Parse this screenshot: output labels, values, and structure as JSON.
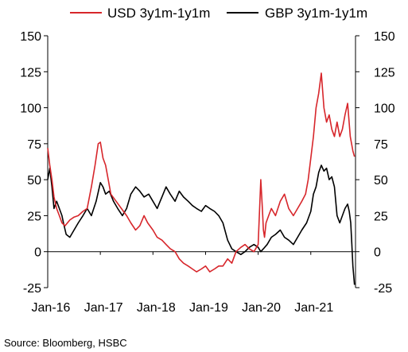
{
  "chart_data": {
    "type": "line",
    "source": "Source: Bloomberg, HSBC",
    "x_tick_labels": [
      "Jan-16",
      "Jan-17",
      "Jan-18",
      "Jan-19",
      "Jan-20",
      "Jan-21"
    ],
    "x_tick_dates": [
      2016.0,
      2017.0,
      2018.0,
      2019.0,
      2020.0,
      2021.0
    ],
    "xlim": [
      2016.0,
      2021.85
    ],
    "ylim": [
      -25,
      150
    ],
    "y_ticks": [
      -25,
      0,
      25,
      50,
      75,
      100,
      125,
      150
    ],
    "y_tick_labels": [
      "-25",
      "0",
      "25",
      "50",
      "75",
      "100",
      "125",
      "150"
    ],
    "grid": false,
    "legend_position": "top",
    "series": [
      {
        "name": "USD 3y1m-1y1m",
        "color": "#d7262b",
        "x": [
          2016.0,
          2016.04,
          2016.08,
          2016.12,
          2016.17,
          2016.22,
          2016.27,
          2016.33,
          2016.42,
          2016.5,
          2016.58,
          2016.67,
          2016.75,
          2016.83,
          2016.9,
          2016.96,
          2017.0,
          2017.05,
          2017.1,
          2017.15,
          2017.2,
          2017.3,
          2017.4,
          2017.5,
          2017.58,
          2017.67,
          2017.75,
          2017.83,
          2017.9,
          2018.0,
          2018.08,
          2018.17,
          2018.25,
          2018.33,
          2018.42,
          2018.5,
          2018.58,
          2018.67,
          2018.75,
          2018.83,
          2018.92,
          2019.0,
          2019.08,
          2019.17,
          2019.25,
          2019.33,
          2019.42,
          2019.5,
          2019.58,
          2019.67,
          2019.75,
          2019.83,
          2019.92,
          2020.0,
          2020.05,
          2020.08,
          2020.1,
          2020.12,
          2020.15,
          2020.2,
          2020.25,
          2020.33,
          2020.42,
          2020.5,
          2020.58,
          2020.67,
          2020.75,
          2020.83,
          2020.9,
          2020.95,
          2021.0,
          2021.05,
          2021.1,
          2021.15,
          2021.2,
          2021.25,
          2021.3,
          2021.35,
          2021.4,
          2021.45,
          2021.5,
          2021.55,
          2021.6,
          2021.65,
          2021.7,
          2021.75,
          2021.8,
          2021.83
        ],
        "y": [
          72,
          60,
          50,
          38,
          30,
          25,
          20,
          18,
          22,
          24,
          25,
          28,
          30,
          45,
          60,
          75,
          76,
          65,
          60,
          50,
          40,
          35,
          30,
          25,
          20,
          15,
          18,
          25,
          20,
          15,
          10,
          8,
          5,
          2,
          0,
          -5,
          -8,
          -10,
          -12,
          -14,
          -12,
          -10,
          -14,
          -12,
          -10,
          -10,
          -5,
          -8,
          0,
          3,
          5,
          2,
          0,
          5,
          50,
          30,
          15,
          10,
          20,
          25,
          30,
          25,
          35,
          40,
          30,
          25,
          30,
          35,
          40,
          50,
          65,
          80,
          100,
          110,
          124,
          100,
          90,
          95,
          85,
          80,
          90,
          80,
          85,
          95,
          103,
          80,
          70,
          66
        ]
      },
      {
        "name": "GBP 3y1m-1y1m",
        "color": "#000000",
        "x": [
          2016.0,
          2016.04,
          2016.08,
          2016.12,
          2016.17,
          2016.22,
          2016.27,
          2016.3,
          2016.35,
          2016.42,
          2016.5,
          2016.58,
          2016.67,
          2016.75,
          2016.83,
          2016.92,
          2017.0,
          2017.05,
          2017.1,
          2017.17,
          2017.25,
          2017.33,
          2017.42,
          2017.5,
          2017.58,
          2017.67,
          2017.75,
          2017.83,
          2017.92,
          2018.0,
          2018.08,
          2018.17,
          2018.25,
          2018.33,
          2018.42,
          2018.5,
          2018.58,
          2018.67,
          2018.75,
          2018.83,
          2018.92,
          2019.0,
          2019.08,
          2019.17,
          2019.25,
          2019.33,
          2019.42,
          2019.5,
          2019.58,
          2019.67,
          2019.75,
          2019.83,
          2019.92,
          2020.0,
          2020.05,
          2020.1,
          2020.17,
          2020.25,
          2020.33,
          2020.42,
          2020.5,
          2020.58,
          2020.67,
          2020.75,
          2020.83,
          2020.92,
          2021.0,
          2021.05,
          2021.1,
          2021.15,
          2021.2,
          2021.25,
          2021.3,
          2021.35,
          2021.4,
          2021.45,
          2021.5,
          2021.55,
          2021.6,
          2021.65,
          2021.7,
          2021.73,
          2021.76,
          2021.78,
          2021.8,
          2021.83
        ],
        "y": [
          50,
          58,
          45,
          30,
          35,
          30,
          25,
          20,
          12,
          10,
          15,
          20,
          25,
          30,
          25,
          35,
          48,
          45,
          40,
          42,
          35,
          30,
          25,
          30,
          40,
          45,
          42,
          38,
          40,
          35,
          30,
          38,
          45,
          40,
          35,
          42,
          38,
          35,
          32,
          30,
          28,
          32,
          30,
          28,
          25,
          20,
          8,
          2,
          0,
          -2,
          0,
          3,
          5,
          3,
          0,
          2,
          5,
          10,
          12,
          15,
          10,
          8,
          5,
          10,
          15,
          20,
          28,
          40,
          45,
          55,
          60,
          56,
          58,
          50,
          52,
          45,
          25,
          20,
          25,
          30,
          33,
          28,
          20,
          5,
          -10,
          -23
        ]
      }
    ]
  }
}
